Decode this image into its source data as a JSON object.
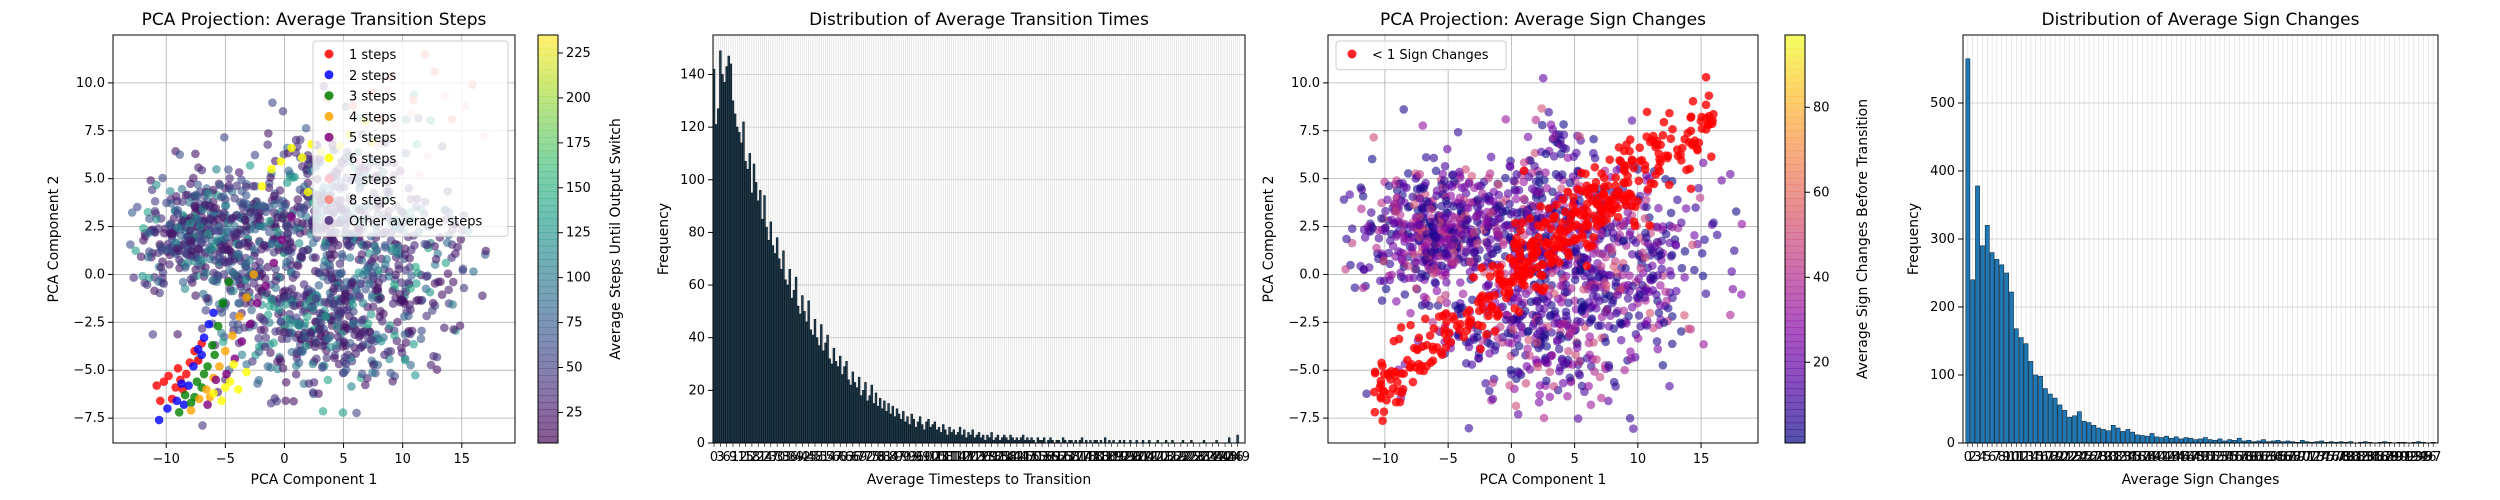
{
  "chart_data": [
    {
      "type": "scatter",
      "title": "PCA Projection: Average Transition Steps",
      "xlabel": "PCA Component 1",
      "ylabel": "PCA Component 2",
      "xlim": [
        -14.5,
        19.5
      ],
      "ylim": [
        -8.8,
        12.5
      ],
      "xticks": [
        -10,
        -5,
        0,
        5,
        10,
        15
      ],
      "xtick_labels": [
        "−10",
        "−5",
        "0",
        "5",
        "10",
        "15"
      ],
      "yticks": [
        -7.5,
        -5.0,
        -2.5,
        0.0,
        2.5,
        5.0,
        7.5,
        10.0
      ],
      "ytick_labels": [
        "−7.5",
        "−5.0",
        "−2.5",
        "0.0",
        "2.5",
        "5.0",
        "7.5",
        "10.0"
      ],
      "grid": true,
      "legend_position": "top-right",
      "colorbar": {
        "label": "Average Steps Until Output Switch",
        "colormap": "viridis",
        "range": [
          8,
          235
        ],
        "ticks": [
          25,
          50,
          75,
          100,
          125,
          150,
          175,
          200,
          225
        ],
        "tick_labels": [
          "25",
          "50",
          "75",
          "100",
          "125",
          "150",
          "175",
          "200",
          "225"
        ]
      },
      "series": [
        {
          "name": "1 steps",
          "color": "#ff0000",
          "points": [
            [
              -10.5,
              -6.6
            ],
            [
              -10.2,
              -5.6
            ],
            [
              -9.8,
              -5.3
            ],
            [
              -9.2,
              -5.9
            ],
            [
              -9.0,
              -4.9
            ],
            [
              -8.6,
              -6.0
            ],
            [
              -8.3,
              -5.2
            ],
            [
              -8.0,
              -4.6
            ],
            [
              -7.6,
              -4.0
            ],
            [
              -7.0,
              -3.6
            ],
            [
              -10.8,
              -5.8
            ],
            [
              -9.5,
              -6.5
            ],
            [
              -8.8,
              -5.5
            ],
            [
              -7.3,
              -4.5
            ]
          ]
        },
        {
          "name": "2 steps",
          "color": "#0000ff",
          "points": [
            [
              -10.6,
              -7.6
            ],
            [
              -9.9,
              -7.0
            ],
            [
              -9.1,
              -6.6
            ],
            [
              -8.7,
              -5.7
            ],
            [
              -8.1,
              -5.8
            ],
            [
              -7.7,
              -4.8
            ],
            [
              -7.3,
              -3.9
            ],
            [
              -6.8,
              -3.3
            ],
            [
              -6.4,
              -2.6
            ],
            [
              -6.0,
              -2.0
            ],
            [
              -8.5,
              -6.8
            ],
            [
              -7.0,
              -4.2
            ]
          ]
        },
        {
          "name": "3 steps",
          "color": "#008000",
          "points": [
            [
              -8.9,
              -7.2
            ],
            [
              -8.4,
              -6.3
            ],
            [
              -7.9,
              -6.7
            ],
            [
              -7.4,
              -5.6
            ],
            [
              -7.0,
              -5.9
            ],
            [
              -6.5,
              -4.8
            ],
            [
              -6.1,
              -3.7
            ],
            [
              -5.6,
              -2.7
            ],
            [
              -5.2,
              -1.5
            ],
            [
              -4.7,
              -0.4
            ],
            [
              -7.6,
              -6.4
            ],
            [
              -6.8,
              -5.2
            ],
            [
              -5.9,
              -4.2
            ]
          ]
        },
        {
          "name": "4 steps",
          "color": "#ffa500",
          "points": [
            [
              -7.9,
              -7.1
            ],
            [
              -7.2,
              -6.5
            ],
            [
              -6.6,
              -6.0
            ],
            [
              -6.0,
              -5.4
            ],
            [
              -5.5,
              -4.8
            ],
            [
              -5.0,
              -4.0
            ],
            [
              -4.4,
              -3.2
            ],
            [
              -3.8,
              -2.2
            ],
            [
              -3.2,
              -1.2
            ],
            [
              -2.6,
              0.0
            ],
            [
              -6.3,
              -6.4
            ]
          ]
        },
        {
          "name": "5 steps",
          "color": "#800080",
          "points": [
            [
              -6.5,
              -6.8
            ],
            [
              -5.8,
              -5.5
            ],
            [
              -4.9,
              -5.2
            ],
            [
              -4.2,
              -4.4
            ],
            [
              -3.6,
              -3.5
            ],
            [
              -2.9,
              -2.6
            ],
            [
              -2.3,
              -1.5
            ],
            [
              -1.6,
              -0.6
            ],
            [
              -0.9,
              0.6
            ],
            [
              -0.2,
              1.8
            ],
            [
              0.6,
              3.0
            ]
          ]
        },
        {
          "name": "6 steps",
          "color": "#ffff00",
          "points": [
            [
              -6.0,
              -6.2
            ],
            [
              -5.3,
              -6.6
            ],
            [
              -4.6,
              -5.6
            ],
            [
              -3.9,
              -6.0
            ],
            [
              -3.2,
              -5.1
            ],
            [
              -4.3,
              -4.7
            ],
            [
              1.5,
              6.1
            ],
            [
              2.3,
              6.8
            ],
            [
              3.1,
              6.4
            ],
            [
              3.9,
              7.2
            ],
            [
              4.7,
              6.7
            ],
            [
              5.5,
              7.3
            ],
            [
              -1.9,
              4.6
            ],
            [
              -1.1,
              5.5
            ],
            [
              -0.3,
              5.9
            ],
            [
              0.6,
              6.6
            ],
            [
              2.0,
              4.3
            ],
            [
              6.8,
              8.0
            ],
            [
              7.5,
              6.9
            ],
            [
              -5.0,
              -5.9
            ]
          ]
        },
        {
          "name": "7 steps",
          "color": "#ffc0cb",
          "points": [
            [
              6.2,
              5.9
            ],
            [
              7.9,
              6.7
            ],
            [
              9.4,
              7.8
            ],
            [
              10.7,
              8.4
            ],
            [
              12.1,
              6.2
            ],
            [
              13.6,
              9.3
            ],
            [
              15.3,
              8.8
            ],
            [
              16.9,
              7.2
            ],
            [
              11.4,
              5.2
            ],
            [
              8.8,
              9.6
            ]
          ]
        },
        {
          "name": "8 steps",
          "color": "#fa8072",
          "points": [
            [
              5.8,
              8.8
            ],
            [
              7.4,
              9.5
            ],
            [
              9.0,
              10.3
            ],
            [
              10.9,
              9.1
            ],
            [
              12.7,
              10.6
            ],
            [
              14.2,
              8.1
            ],
            [
              15.9,
              9.9
            ],
            [
              11.9,
              11.5
            ],
            [
              3.6,
              9.2
            ],
            [
              8.2,
              8.1
            ]
          ]
        }
      ],
      "other_series": {
        "name": "Other average steps",
        "count": 1500,
        "note": "dense point cloud colored by average steps on the colorbar scale"
      }
    },
    {
      "type": "bar",
      "title": "Distribution of Average Transition Times",
      "xlabel": "Average Timesteps to Transition",
      "ylabel": "Frequency",
      "xlim": [
        0,
        253
      ],
      "ylim": [
        0,
        155
      ],
      "yticks": [
        0,
        20,
        40,
        60,
        80,
        100,
        120,
        140
      ],
      "tick_labels_x": "0, 1, 2, … 252 (one label per bar, overlapping)",
      "grid": true,
      "values": [
        142,
        121,
        127,
        149,
        140,
        137,
        143,
        147,
        144,
        130,
        125,
        120,
        118,
        114,
        122,
        107,
        104,
        110,
        95,
        106,
        99,
        92,
        96,
        85,
        94,
        82,
        77,
        84,
        75,
        72,
        78,
        70,
        66,
        73,
        62,
        60,
        66,
        55,
        58,
        63,
        52,
        49,
        56,
        50,
        46,
        54,
        43,
        41,
        47,
        40,
        37,
        45,
        35,
        38,
        41,
        32,
        30,
        36,
        31,
        29,
        33,
        26,
        29,
        31,
        24,
        22,
        27,
        23,
        21,
        25,
        18,
        20,
        23,
        16,
        18,
        22,
        15,
        19,
        14,
        17,
        13,
        16,
        12,
        15,
        11,
        14,
        10,
        13,
        11,
        9,
        12,
        8,
        10,
        7,
        11,
        9,
        6,
        8,
        10,
        7,
        5,
        8,
        9,
        6,
        7,
        8,
        5,
        6,
        4,
        7,
        5,
        3,
        6,
        4,
        5,
        3,
        4,
        6,
        3,
        5,
        2,
        4,
        3,
        5,
        2,
        3,
        4,
        2,
        3,
        1,
        3,
        2,
        4,
        1,
        2,
        3,
        1,
        2,
        3,
        2,
        1,
        3,
        2,
        1,
        2,
        1,
        2,
        3,
        1,
        2,
        1,
        2,
        1,
        0,
        2,
        1,
        1,
        2,
        0,
        1,
        2,
        1,
        0,
        1,
        1,
        0,
        2,
        1,
        0,
        1,
        1,
        0,
        1,
        0,
        1,
        2,
        0,
        1,
        0,
        1,
        0,
        1,
        1,
        0,
        1,
        0,
        2,
        0,
        1,
        0,
        1,
        0,
        0,
        1,
        0,
        1,
        0,
        0,
        1,
        0,
        0,
        1,
        0,
        0,
        1,
        0,
        0,
        1,
        0,
        0,
        0,
        1,
        0,
        0,
        0,
        1,
        0,
        0,
        1,
        0,
        0,
        0,
        0,
        1,
        0,
        0,
        0,
        1,
        0,
        0,
        0,
        0,
        0,
        1,
        0,
        0,
        0,
        0,
        0,
        1,
        0,
        0,
        0,
        0,
        0,
        2,
        0,
        0,
        0,
        3,
        0
      ]
    },
    {
      "type": "scatter",
      "title": "PCA Projection: Average Sign Changes",
      "xlabel": "PCA Component 1",
      "ylabel": "PCA Component 2",
      "xlim": [
        -14.5,
        19.5
      ],
      "ylim": [
        -8.8,
        12.5
      ],
      "xticks": [
        -10,
        -5,
        0,
        5,
        10,
        15
      ],
      "xtick_labels": [
        "−10",
        "−5",
        "0",
        "5",
        "10",
        "15"
      ],
      "yticks": [
        -7.5,
        -5.0,
        -2.5,
        0.0,
        2.5,
        5.0,
        7.5,
        10.0
      ],
      "ytick_labels": [
        "−7.5",
        "−5.0",
        "−2.5",
        "0.0",
        "2.5",
        "5.0",
        "7.5",
        "10.0"
      ],
      "grid": true,
      "legend_position": "top-left",
      "colorbar": {
        "label": "Average Sign Changes Before Transition",
        "colormap": "plasma",
        "range": [
          1,
          97
        ],
        "ticks": [
          20,
          40,
          60,
          80
        ],
        "tick_labels": [
          "20",
          "40",
          "60",
          "80"
        ]
      },
      "series": [
        {
          "name": "< 1 Sign Changes",
          "color": "#ff0000",
          "count": 420,
          "note": "two diagonal bands of red points"
        }
      ],
      "other_series": {
        "count": 1500,
        "note": "dense point cloud colored by average sign changes"
      }
    },
    {
      "type": "bar",
      "title": "Distribution of Average Sign Changes",
      "xlabel": "Average Sign Changes",
      "ylabel": "Frequency",
      "xlim": [
        -1,
        97
      ],
      "ylim": [
        0,
        600
      ],
      "yticks": [
        0,
        100,
        200,
        300,
        400,
        500
      ],
      "tick_labels_x": "0, 2, 3, 4, … 96 (dense, overlapping)",
      "grid": true,
      "values": [
        565,
        240,
        378,
        290,
        320,
        280,
        270,
        262,
        250,
        222,
        168,
        155,
        146,
        120,
        100,
        98,
        80,
        72,
        66,
        56,
        48,
        38,
        40,
        46,
        32,
        30,
        26,
        22,
        20,
        18,
        26,
        22,
        17,
        20,
        16,
        12,
        11,
        10,
        14,
        9,
        8,
        10,
        7,
        9,
        6,
        8,
        7,
        5,
        6,
        8,
        5,
        4,
        6,
        3,
        5,
        4,
        7,
        3,
        4,
        2,
        3,
        5,
        2,
        3,
        4,
        2,
        3,
        2,
        1,
        4,
        2,
        1,
        2,
        3,
        1,
        2,
        1,
        2,
        1,
        2,
        0,
        1,
        2,
        1,
        0,
        1,
        2,
        1,
        0,
        1,
        1,
        0,
        1,
        2,
        1,
        0,
        1
      ]
    }
  ]
}
